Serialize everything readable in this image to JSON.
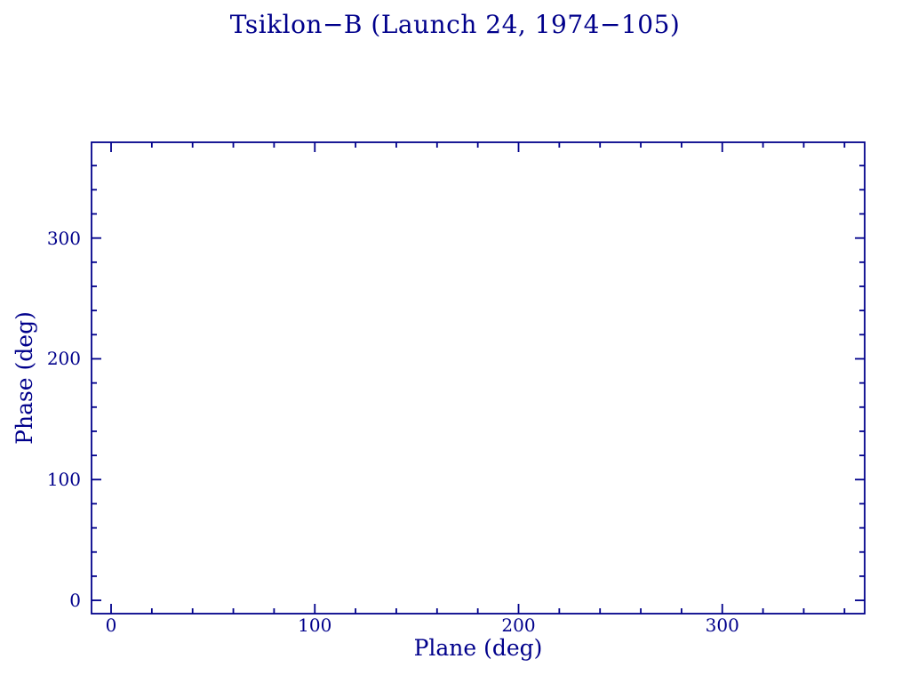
{
  "window": {
    "background": "#ffffff"
  },
  "chart_data": {
    "type": "scatter",
    "title": "Tsiklon−B (Launch 24, 1974−105)",
    "xlabel": "Plane (deg)",
    "ylabel": "Phase (deg)",
    "xlim": [
      -9.6,
      369.9
    ],
    "ylim": [
      -11.0,
      379.3
    ],
    "x_major_ticks": [
      0,
      100,
      200,
      300
    ],
    "y_major_ticks": [
      0,
      100,
      200,
      300
    ],
    "x_minor_step": 20,
    "y_minor_step": 20,
    "tick_direction": "in",
    "grid": false,
    "legend": null,
    "series": [],
    "axis_color": "#00008B",
    "text_color": "#00008B"
  }
}
